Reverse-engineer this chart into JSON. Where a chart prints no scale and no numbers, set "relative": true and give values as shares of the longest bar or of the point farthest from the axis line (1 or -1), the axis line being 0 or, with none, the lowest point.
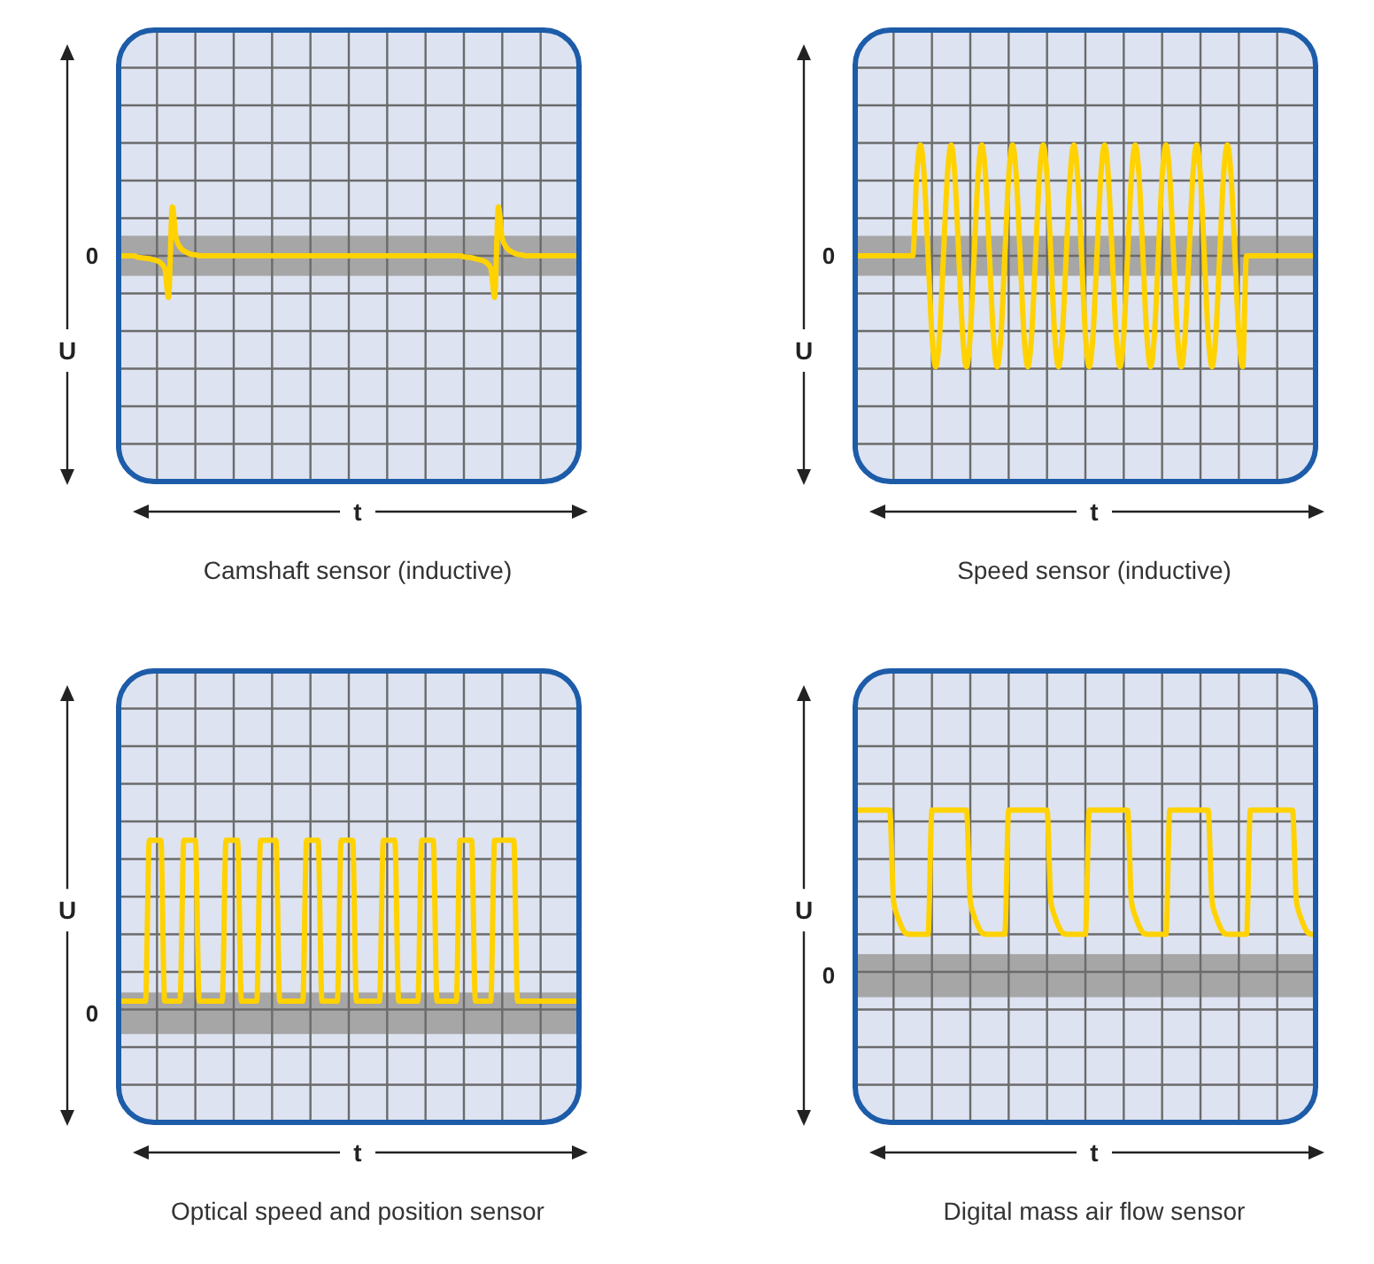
{
  "chart_data": [
    {
      "type": "line",
      "title": "Camshaft sensor (inductive)",
      "xlabel": "t",
      "ylabel": "U",
      "relative": true,
      "grid": true,
      "color": "#ffd200",
      "annotations": [
        "0"
      ],
      "bands": [
        {
          "axis": "y",
          "from": -0.41,
          "to": 0.41,
          "color": "#a6a6a6"
        }
      ],
      "categories": [
        null,
        null,
        null,
        null,
        null,
        null,
        null,
        null,
        null,
        null,
        null,
        null,
        null,
        null,
        null,
        null,
        null,
        null,
        null,
        null,
        null,
        null,
        null,
        null,
        null,
        null,
        null,
        null,
        null,
        null,
        null,
        null,
        null,
        null,
        null,
        null,
        null,
        null,
        null,
        null,
        null,
        null,
        null,
        null,
        null,
        null,
        null,
        null,
        null,
        null,
        null,
        null,
        null,
        null,
        null,
        null,
        null,
        null,
        null,
        null,
        null,
        null,
        null,
        null,
        null,
        null,
        null,
        null,
        null,
        null,
        null,
        null,
        null,
        null,
        null,
        null,
        null,
        null,
        null,
        null,
        null,
        null,
        null,
        null,
        null,
        null,
        null,
        null,
        null,
        null,
        null,
        null,
        null,
        null,
        null,
        null,
        null,
        null,
        null,
        null,
        null,
        null,
        null,
        null,
        null,
        null,
        null,
        null,
        null,
        null,
        null,
        null,
        null,
        null,
        null,
        null,
        null,
        null,
        null,
        null,
        null
      ],
      "values": [
        0,
        0,
        0,
        0,
        0,
        -0.03,
        -0.04,
        -0.05,
        -0.06,
        -0.08,
        -0.1,
        -0.15,
        -0.25,
        -0.85,
        1,
        0.35,
        0.18,
        0.1,
        0.06,
        0.03,
        0.02,
        0,
        0,
        0,
        0,
        0,
        0,
        0,
        0,
        0,
        0,
        0,
        0,
        0,
        0,
        0,
        0,
        0,
        0,
        0,
        0,
        0,
        0,
        0,
        0,
        0,
        0,
        0,
        0,
        0,
        0,
        0,
        0,
        0,
        0,
        0,
        0,
        0,
        0,
        0,
        0,
        0,
        0,
        0,
        0,
        0,
        0,
        0,
        0,
        0,
        0,
        0,
        0,
        0,
        0,
        0,
        0,
        0,
        0,
        0,
        0,
        0,
        0,
        0,
        0,
        0,
        0,
        0,
        0,
        0,
        -0.02,
        -0.03,
        -0.04,
        -0.06,
        -0.08,
        -0.1,
        -0.15,
        -0.25,
        -0.85,
        1,
        0.35,
        0.18,
        0.1,
        0.06,
        0.03,
        0.02,
        0,
        0,
        0,
        0,
        0,
        0,
        0,
        0,
        0,
        0,
        0,
        0,
        0,
        0,
        0
      ]
    },
    {
      "type": "line",
      "title": "Speed sensor (inductive)",
      "xlabel": "t",
      "ylabel": "U",
      "relative": true,
      "grid": true,
      "color": "#ffd200",
      "annotations": [
        "0"
      ],
      "bands": [
        {
          "axis": "y",
          "from": -0.18,
          "to": 0.18,
          "color": "#a6a6a6"
        }
      ],
      "categories": [
        null,
        null,
        null,
        null,
        null,
        null,
        null,
        null,
        null,
        null,
        null,
        null,
        null,
        null,
        null,
        null,
        null,
        null,
        null,
        null,
        null,
        null,
        null,
        null,
        null,
        null,
        null,
        null,
        null,
        null,
        null,
        null,
        null,
        null,
        null,
        null,
        null,
        null,
        null,
        null,
        null,
        null,
        null,
        null,
        null,
        null,
        null,
        null,
        null,
        null,
        null,
        null,
        null,
        null,
        null,
        null,
        null,
        null,
        null,
        null,
        null,
        null,
        null,
        null,
        null,
        null,
        null,
        null,
        null,
        null,
        null,
        null,
        null,
        null,
        null,
        null,
        null,
        null,
        null,
        null,
        null,
        null,
        null,
        null,
        null,
        null,
        null,
        null,
        null,
        null,
        null,
        null,
        null,
        null,
        null,
        null,
        null,
        null,
        null,
        null,
        null,
        null,
        null,
        null,
        null,
        null,
        null,
        null,
        null,
        null,
        null,
        null,
        null,
        null,
        null,
        null,
        null,
        null,
        null,
        null,
        null
      ],
      "values": [
        0,
        0,
        0,
        0,
        0,
        0,
        0,
        0,
        0,
        0,
        0,
        0,
        0,
        0,
        0,
        0,
        0.71,
        1,
        0.71,
        0,
        -0.71,
        -1,
        -0.71,
        0,
        0.71,
        1,
        0.71,
        0,
        -0.71,
        -1,
        -0.71,
        0,
        0.71,
        1,
        0.71,
        0,
        -0.71,
        -1,
        -0.71,
        0,
        0.71,
        1,
        0.71,
        0,
        -0.71,
        -1,
        -0.71,
        0,
        0.71,
        1,
        0.71,
        0,
        -0.71,
        -1,
        -0.71,
        0,
        0.71,
        1,
        0.71,
        0,
        -0.71,
        -1,
        -0.71,
        0,
        0.71,
        1,
        0.71,
        0,
        -0.71,
        -1,
        -0.71,
        0,
        0.71,
        1,
        0.71,
        0,
        -0.71,
        -1,
        -0.71,
        0,
        0.71,
        1,
        0.71,
        0,
        -0.71,
        -1,
        -0.71,
        0,
        0.71,
        1,
        0.71,
        0,
        -0.71,
        -1,
        -0.71,
        0,
        0.71,
        1,
        0.71,
        0,
        -0.71,
        -1,
        0,
        0,
        0,
        0,
        0,
        0,
        0,
        0,
        0,
        0,
        0,
        0,
        0,
        0,
        0,
        0,
        0,
        0,
        0
      ]
    },
    {
      "type": "line",
      "title": "Optical speed and position sensor",
      "xlabel": "t",
      "ylabel": "U",
      "relative": true,
      "grid": true,
      "color": "#ffd200",
      "annotations": [
        "0"
      ],
      "bands": [
        {
          "axis": "y",
          "from": -0.12,
          "to": 0.12,
          "color": "#a6a6a6"
        }
      ],
      "categories": [
        null,
        null,
        null,
        null,
        null,
        null,
        null,
        null,
        null,
        null,
        null,
        null,
        null,
        null,
        null,
        null,
        null,
        null,
        null,
        null,
        null,
        null,
        null,
        null,
        null,
        null,
        null,
        null,
        null,
        null,
        null,
        null,
        null,
        null,
        null,
        null,
        null,
        null,
        null,
        null,
        null,
        null,
        null,
        null,
        null,
        null,
        null,
        null,
        null,
        null,
        null,
        null,
        null,
        null,
        null,
        null,
        null,
        null,
        null,
        null,
        null,
        null,
        null,
        null,
        null,
        null,
        null,
        null,
        null,
        null,
        null,
        null,
        null,
        null,
        null,
        null,
        null,
        null,
        null,
        null,
        null,
        null,
        null,
        null,
        null,
        null,
        null,
        null,
        null,
        null,
        null,
        null,
        null,
        null,
        null,
        null,
        null,
        null,
        null,
        null,
        null,
        null,
        null,
        null,
        null,
        null,
        null,
        null,
        null,
        null,
        null,
        null,
        null,
        null,
        null,
        null,
        null,
        null,
        null,
        null,
        null
      ],
      "values": [
        0.07,
        0.07,
        0.07,
        0.07,
        0.07,
        0.07,
        0.07,
        0.07,
        1,
        1,
        1,
        1,
        0.07,
        0.07,
        0.07,
        0.07,
        0.07,
        1,
        1,
        1,
        1,
        0.07,
        0.07,
        0.07,
        0.07,
        0.07,
        0.07,
        0.07,
        1,
        1,
        1,
        1,
        0.07,
        0.07,
        0.07,
        0.07,
        0.07,
        1,
        1,
        1,
        1,
        1,
        0.07,
        0.07,
        0.07,
        0.07,
        0.07,
        0.07,
        0.07,
        1,
        1,
        1,
        1,
        0.07,
        0.07,
        0.07,
        0.07,
        0.07,
        1,
        1,
        1,
        1,
        0.07,
        0.07,
        0.07,
        0.07,
        0.07,
        0.07,
        0.07,
        1,
        1,
        1,
        1,
        0.07,
        0.07,
        0.07,
        0.07,
        0.07,
        0.07,
        1,
        1,
        1,
        1,
        0.07,
        0.07,
        0.07,
        0.07,
        0.07,
        0.07,
        1,
        1,
        1,
        1,
        0.07,
        0.07,
        0.07,
        0.07,
        0.07,
        1,
        1,
        1,
        1,
        1,
        1,
        0.07,
        0.07,
        0.07,
        0.07,
        0.07,
        0.07,
        0.07,
        0.07,
        0.07,
        0.07,
        0.07,
        0.07,
        0.07,
        0.07,
        0.07,
        0.07,
        0.07
      ]
    },
    {
      "type": "line",
      "title": "Digital mass air flow sensor",
      "xlabel": "t",
      "ylabel": "U",
      "relative": true,
      "grid": true,
      "color": "#ffd200",
      "annotations": [
        "0"
      ],
      "bands": [
        {
          "axis": "y",
          "from": -0.13,
          "to": 0.13,
          "color": "#a6a6a6"
        }
      ],
      "categories": [
        null,
        null,
        null,
        null,
        null,
        null,
        null,
        null,
        null,
        null,
        null,
        null,
        null,
        null,
        null,
        null,
        null,
        null,
        null,
        null,
        null,
        null,
        null,
        null,
        null,
        null,
        null,
        null,
        null,
        null,
        null,
        null,
        null,
        null,
        null,
        null,
        null,
        null,
        null,
        null,
        null,
        null,
        null,
        null,
        null,
        null,
        null,
        null,
        null,
        null,
        null,
        null,
        null,
        null,
        null,
        null,
        null,
        null,
        null,
        null,
        null,
        null,
        null,
        null,
        null,
        null,
        null,
        null,
        null,
        null,
        null,
        null,
        null,
        null,
        null,
        null,
        null,
        null,
        null,
        null,
        null,
        null,
        null,
        null,
        null,
        null,
        null,
        null,
        null,
        null,
        null,
        null,
        null,
        null,
        null,
        null,
        null,
        null,
        null,
        null,
        null,
        null,
        null,
        null,
        null,
        null,
        null,
        null,
        null,
        null,
        null,
        null,
        null,
        null,
        null,
        null,
        null,
        null,
        null,
        null,
        null
      ],
      "values": [
        1,
        1,
        1,
        1,
        1,
        1,
        1,
        1,
        1,
        1,
        0.45,
        0.36,
        0.3,
        0.26,
        0.25,
        0.25,
        0.25,
        0.25,
        0.25,
        0.25,
        1,
        1,
        1,
        1,
        1,
        1,
        1,
        1,
        1,
        1,
        0.45,
        0.36,
        0.3,
        0.26,
        0.25,
        0.25,
        0.25,
        0.25,
        0.25,
        0.25,
        1,
        1,
        1,
        1,
        1,
        1,
        1,
        1,
        1,
        1,
        1,
        0.45,
        0.36,
        0.3,
        0.26,
        0.25,
        0.25,
        0.25,
        0.25,
        0.25,
        0.25,
        1,
        1,
        1,
        1,
        1,
        1,
        1,
        1,
        1,
        1,
        1,
        0.45,
        0.36,
        0.3,
        0.26,
        0.25,
        0.25,
        0.25,
        0.25,
        0.25,
        0.25,
        1,
        1,
        1,
        1,
        1,
        1,
        1,
        1,
        1,
        1,
        1,
        0.45,
        0.36,
        0.3,
        0.26,
        0.25,
        0.25,
        0.25,
        0.25,
        0.25,
        0.25,
        1,
        1,
        1,
        1,
        1,
        1,
        1,
        1,
        1,
        1,
        1,
        1,
        0.45,
        0.36,
        0.3,
        0.26,
        0.25,
        0.25
      ]
    }
  ]
}
